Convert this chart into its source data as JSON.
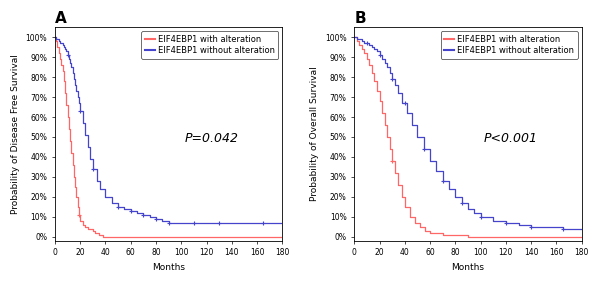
{
  "panel_A": {
    "title": "A",
    "ylabel": "Probability of Disease Free Survival",
    "xlabel": "Months",
    "pvalue": "P=0.042",
    "xlim": [
      0,
      180
    ],
    "ylim": [
      -0.02,
      1.05
    ],
    "xticks": [
      0,
      20,
      40,
      60,
      80,
      100,
      120,
      140,
      160,
      180
    ],
    "yticks": [
      0.0,
      0.1,
      0.2,
      0.3,
      0.4,
      0.5,
      0.6,
      0.7,
      0.8,
      0.9,
      1.0
    ],
    "ytick_labels": [
      "0%",
      "10%",
      "20%",
      "30%",
      "40%",
      "50%",
      "60%",
      "70%",
      "80%",
      "90%",
      "100%"
    ],
    "red_x": [
      0,
      1,
      2,
      3,
      4,
      5,
      6,
      7,
      8,
      9,
      10,
      11,
      12,
      13,
      14,
      15,
      16,
      17,
      18,
      19,
      20,
      22,
      24,
      26,
      28,
      30,
      32,
      35,
      38,
      40,
      180
    ],
    "red_y": [
      1.0,
      0.98,
      0.95,
      0.92,
      0.89,
      0.86,
      0.83,
      0.78,
      0.72,
      0.66,
      0.6,
      0.54,
      0.48,
      0.42,
      0.36,
      0.3,
      0.25,
      0.2,
      0.15,
      0.11,
      0.08,
      0.06,
      0.05,
      0.04,
      0.04,
      0.03,
      0.02,
      0.01,
      0.0,
      0.0,
      0.0
    ],
    "blue_x": [
      0,
      1,
      2,
      3,
      4,
      5,
      6,
      7,
      8,
      9,
      10,
      11,
      12,
      13,
      14,
      15,
      16,
      17,
      18,
      19,
      20,
      22,
      24,
      26,
      28,
      30,
      33,
      36,
      40,
      45,
      50,
      55,
      60,
      65,
      70,
      75,
      80,
      85,
      90,
      100,
      110,
      120,
      130,
      140,
      150,
      165,
      180
    ],
    "blue_y": [
      1.0,
      0.99,
      0.99,
      0.98,
      0.97,
      0.97,
      0.96,
      0.95,
      0.94,
      0.93,
      0.91,
      0.89,
      0.87,
      0.85,
      0.82,
      0.79,
      0.76,
      0.73,
      0.7,
      0.67,
      0.63,
      0.57,
      0.51,
      0.45,
      0.39,
      0.34,
      0.28,
      0.24,
      0.2,
      0.17,
      0.15,
      0.14,
      0.13,
      0.12,
      0.11,
      0.1,
      0.09,
      0.08,
      0.07,
      0.07,
      0.07,
      0.07,
      0.07,
      0.07,
      0.07,
      0.07,
      0.07
    ],
    "blue_censor_x": [
      10,
      20,
      30,
      50,
      60,
      70,
      80,
      90,
      110,
      130,
      165
    ],
    "blue_censor_y": [
      0.91,
      0.63,
      0.34,
      0.15,
      0.13,
      0.11,
      0.09,
      0.07,
      0.07,
      0.07,
      0.07
    ],
    "red_censor_x": [
      19
    ],
    "red_censor_y": [
      0.11
    ]
  },
  "panel_B": {
    "title": "B",
    "ylabel": "Probability of Overall Survival",
    "xlabel": "Months",
    "pvalue": "P<0.001",
    "xlim": [
      0,
      180
    ],
    "ylim": [
      -0.02,
      1.05
    ],
    "xticks": [
      0,
      20,
      40,
      60,
      80,
      100,
      120,
      140,
      160,
      180
    ],
    "yticks": [
      0.0,
      0.1,
      0.2,
      0.3,
      0.4,
      0.5,
      0.6,
      0.7,
      0.8,
      0.9,
      1.0
    ],
    "ytick_labels": [
      "0%",
      "10%",
      "20%",
      "30%",
      "40%",
      "50%",
      "60%",
      "70%",
      "80%",
      "90%",
      "100%"
    ],
    "red_x": [
      0,
      2,
      4,
      6,
      8,
      10,
      12,
      14,
      16,
      18,
      20,
      22,
      24,
      26,
      28,
      30,
      32,
      35,
      38,
      40,
      44,
      48,
      52,
      56,
      60,
      65,
      70,
      75,
      80,
      85,
      90,
      95,
      180
    ],
    "red_y": [
      1.0,
      0.98,
      0.96,
      0.94,
      0.92,
      0.89,
      0.86,
      0.82,
      0.78,
      0.73,
      0.68,
      0.62,
      0.56,
      0.5,
      0.44,
      0.38,
      0.32,
      0.26,
      0.2,
      0.15,
      0.1,
      0.07,
      0.05,
      0.03,
      0.02,
      0.02,
      0.01,
      0.01,
      0.01,
      0.01,
      0.0,
      0.0,
      0.0
    ],
    "blue_x": [
      0,
      2,
      4,
      6,
      8,
      10,
      12,
      14,
      16,
      18,
      20,
      22,
      24,
      26,
      28,
      30,
      32,
      35,
      38,
      42,
      46,
      50,
      55,
      60,
      65,
      70,
      75,
      80,
      85,
      90,
      95,
      100,
      110,
      120,
      130,
      140,
      150,
      165,
      180
    ],
    "blue_y": [
      1.0,
      0.99,
      0.99,
      0.98,
      0.97,
      0.97,
      0.96,
      0.95,
      0.94,
      0.93,
      0.91,
      0.89,
      0.87,
      0.85,
      0.82,
      0.79,
      0.76,
      0.72,
      0.67,
      0.62,
      0.56,
      0.5,
      0.44,
      0.38,
      0.33,
      0.28,
      0.24,
      0.2,
      0.17,
      0.14,
      0.12,
      0.1,
      0.08,
      0.07,
      0.06,
      0.05,
      0.05,
      0.04,
      0.04
    ],
    "blue_censor_x": [
      10,
      20,
      30,
      40,
      55,
      70,
      85,
      100,
      120,
      140,
      165
    ],
    "blue_censor_y": [
      0.97,
      0.91,
      0.79,
      0.67,
      0.44,
      0.28,
      0.17,
      0.1,
      0.07,
      0.05,
      0.04
    ],
    "red_censor_x": [
      30
    ],
    "red_censor_y": [
      0.38
    ]
  },
  "red_color": "#FF6666",
  "blue_color": "#4444CC",
  "legend_with": "EIF4EBP1 with alteration",
  "legend_without": "EIF4EBP1 without alteration",
  "background_color": "#ffffff",
  "line_width": 0.9,
  "pvalue_fontsize": 9,
  "title_fontsize": 11,
  "tick_fontsize": 5.5,
  "label_fontsize": 6.5,
  "legend_fontsize": 6.0
}
